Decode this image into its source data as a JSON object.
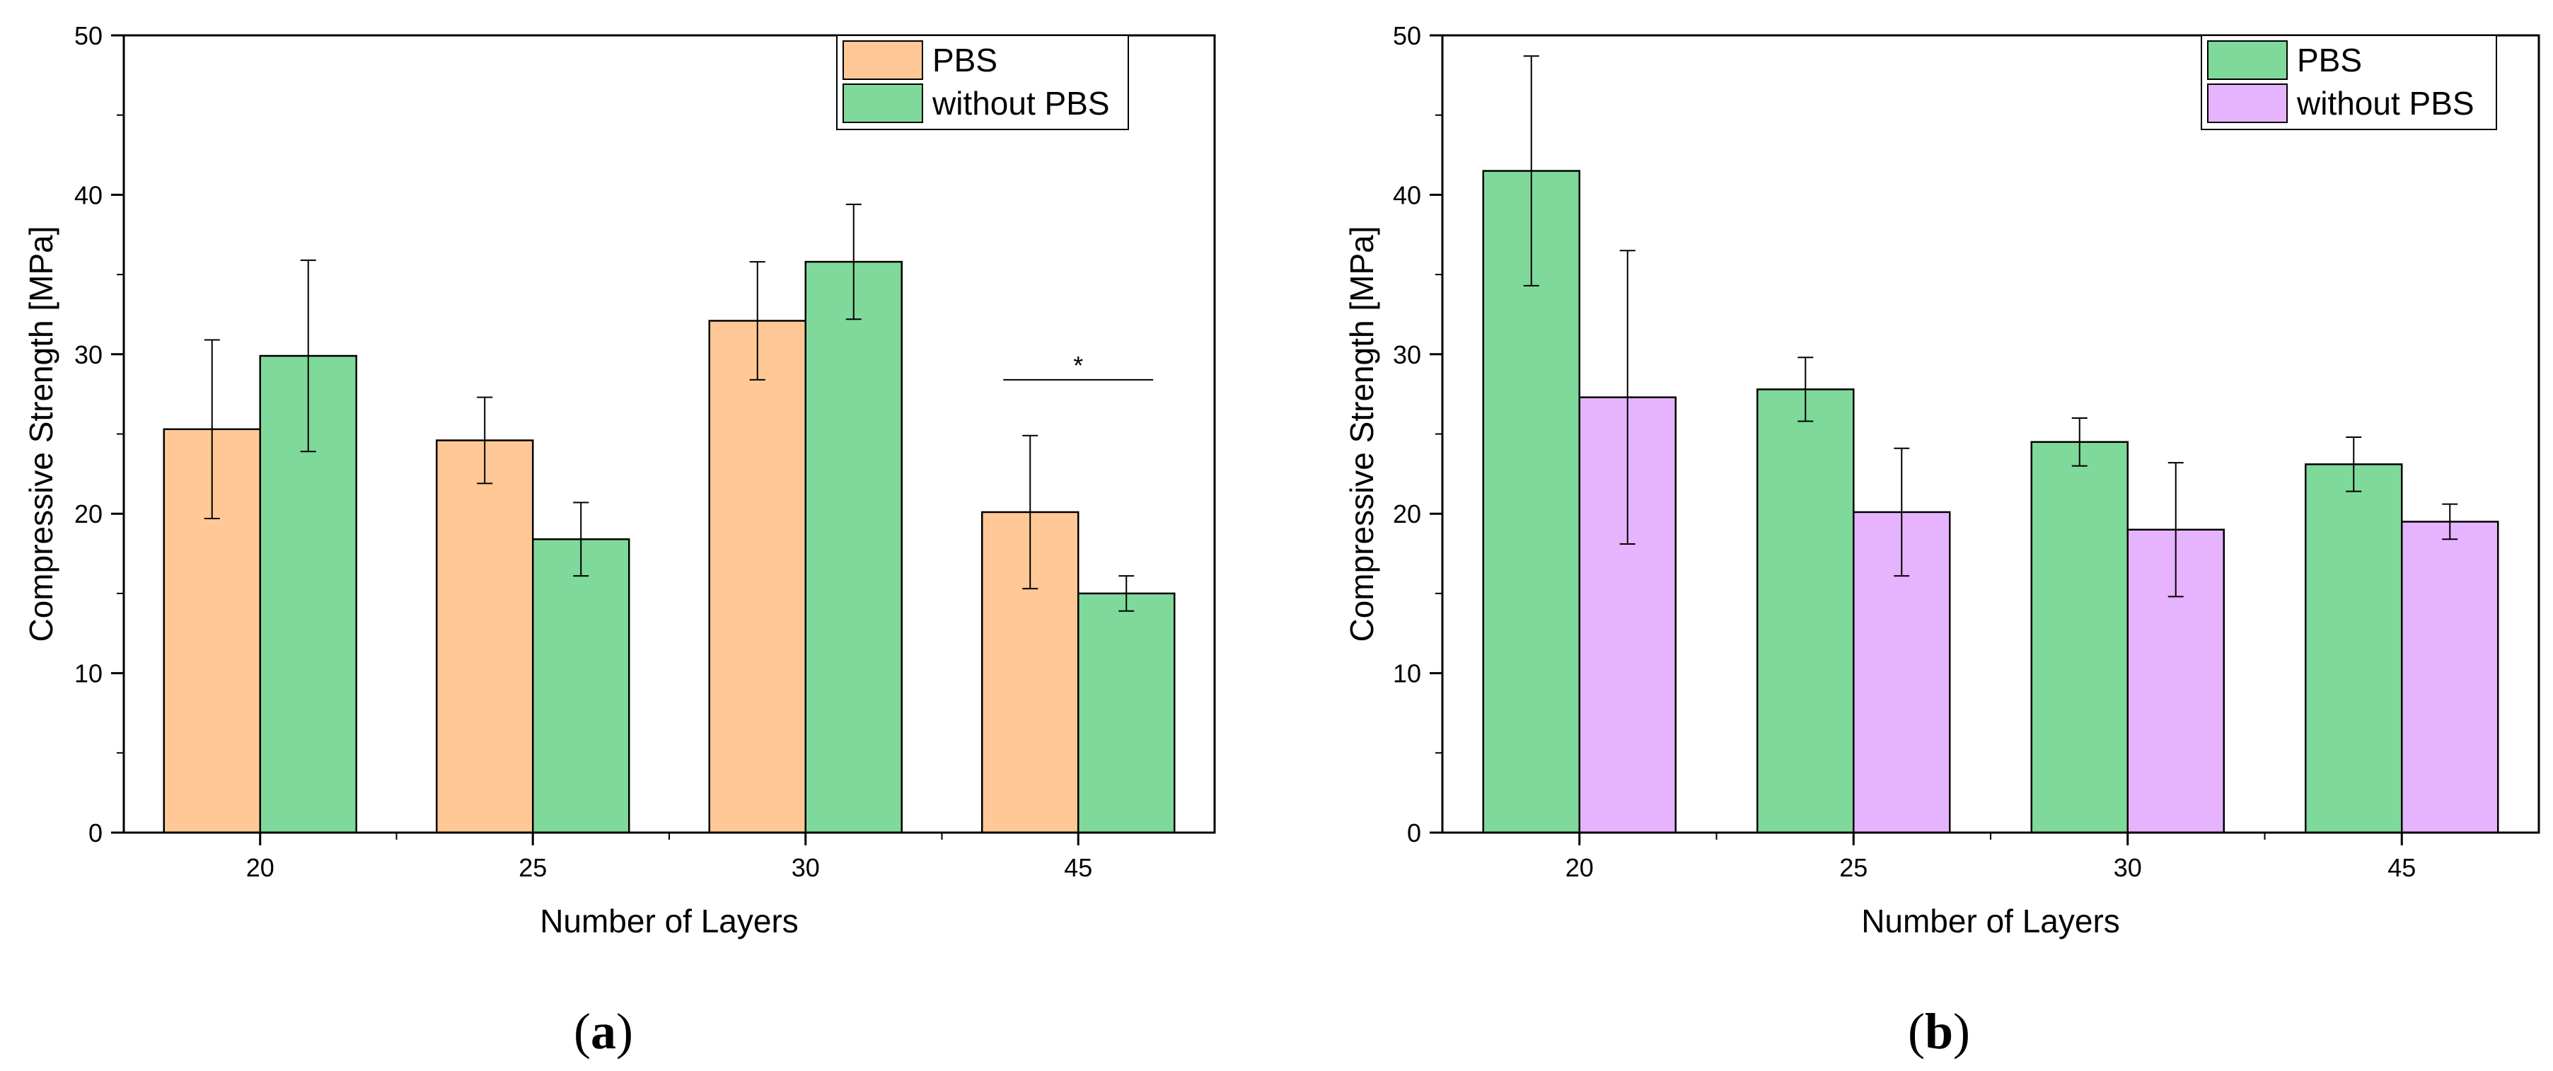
{
  "chart_data": [
    {
      "type": "bar",
      "panel_label": "a",
      "xlabel": "Number of Layers",
      "ylabel": "Compressive Strength [MPa]",
      "ylim": [
        0,
        50
      ],
      "yticks": [
        0,
        10,
        20,
        30,
        40,
        50
      ],
      "categories": [
        "20",
        "25",
        "30",
        "45"
      ],
      "legend_position": "top-right",
      "series": [
        {
          "name": "PBS",
          "color": "#ffc896",
          "values": [
            25.3,
            24.6,
            32.1,
            20.1
          ],
          "errors": [
            5.6,
            2.7,
            3.7,
            4.8
          ]
        },
        {
          "name": "without PBS",
          "color": "#7fd99a",
          "values": [
            29.9,
            18.4,
            35.8,
            15.0
          ],
          "errors": [
            6.0,
            2.3,
            3.6,
            1.1
          ]
        }
      ],
      "annotations": [
        {
          "text": "*",
          "category": "45",
          "y": 28.4
        }
      ]
    },
    {
      "type": "bar",
      "panel_label": "b",
      "xlabel": "Number of Layers",
      "ylabel": "Compressive Strength [MPa]",
      "ylim": [
        0,
        50
      ],
      "yticks": [
        0,
        10,
        20,
        30,
        40,
        50
      ],
      "categories": [
        "20",
        "25",
        "30",
        "45"
      ],
      "legend_position": "top-right",
      "series": [
        {
          "name": "PBS",
          "color": "#7fd99a",
          "values": [
            41.5,
            27.8,
            24.5,
            23.1
          ],
          "errors": [
            7.2,
            2.0,
            1.5,
            1.7
          ]
        },
        {
          "name": "without PBS",
          "color": "#e6b3ff",
          "values": [
            27.3,
            20.1,
            19.0,
            19.5
          ],
          "errors": [
            9.2,
            4.0,
            4.2,
            1.1
          ]
        }
      ],
      "annotations": []
    }
  ]
}
